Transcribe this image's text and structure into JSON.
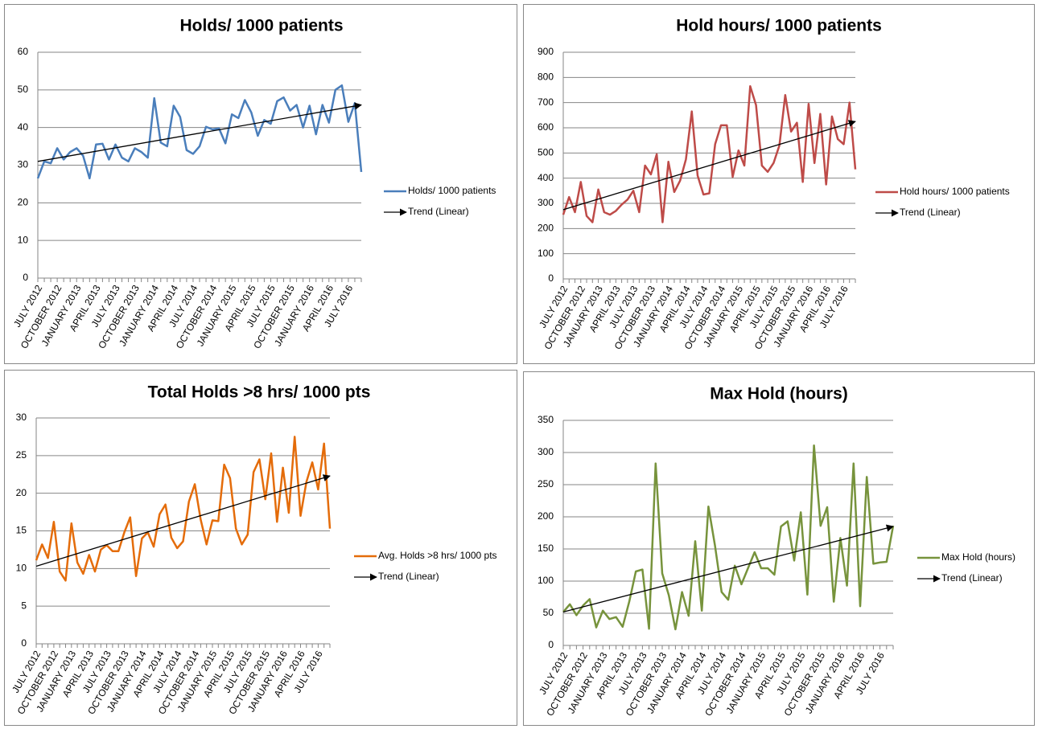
{
  "chart_data": [
    {
      "type": "line",
      "title": "Holds/ 1000 patients",
      "categories": [
        "JULY 2012",
        null,
        null,
        "OCTOBER 2012",
        null,
        null,
        "JANUARY 2013",
        null,
        null,
        "APRIL 2013",
        null,
        null,
        "JULY 2013",
        null,
        null,
        "OCTOBER 2013",
        null,
        null,
        "JANUARY 2014",
        null,
        null,
        "APRIL 2014",
        null,
        null,
        "JULY 2014",
        null,
        null,
        "OCTOBER 2014",
        null,
        null,
        "JANUARY 2015",
        null,
        null,
        "APRIL 2015",
        null,
        null,
        "JULY 2015",
        null,
        null,
        "OCTOBER 2015",
        null,
        null,
        "JANUARY 2016",
        null,
        null,
        "APRIL 2016",
        null,
        null,
        "JULY 2016",
        null,
        null
      ],
      "series": [
        {
          "name": "Holds/ 1000 patients",
          "color": "#4a7ebb",
          "values": [
            26.5,
            31,
            30.5,
            34.5,
            31.5,
            33.5,
            34.5,
            32.5,
            26.5,
            35.5,
            35.7,
            31.5,
            35.5,
            32,
            31,
            34.5,
            33.5,
            32,
            47.8,
            36,
            35,
            45.8,
            42.8,
            34,
            33,
            35,
            40.2,
            39.5,
            39.8,
            35.8,
            43.5,
            42.5,
            47.3,
            44,
            37.8,
            42,
            41,
            47,
            48,
            44.5,
            46,
            40,
            45.8,
            38.2,
            46,
            41.3,
            50,
            51.2,
            41.5,
            46.5,
            28.2
          ]
        }
      ],
      "trend": {
        "name": "Trend (Linear)",
        "start": 31,
        "end": 46
      },
      "ylim": [
        0,
        60
      ],
      "yticks": [
        0,
        10,
        20,
        30,
        40,
        50,
        60
      ],
      "grid": true
    },
    {
      "type": "line",
      "title": "Hold hours/ 1000 patients",
      "categories": [
        "JULY 2012",
        null,
        null,
        "OCTOBER 2012",
        null,
        null,
        "JANUARY 2013",
        null,
        null,
        "APRIL 2013",
        null,
        null,
        "JULY 2013",
        null,
        null,
        "OCTOBER 2013",
        null,
        null,
        "JANUARY 2014",
        null,
        null,
        "APRIL 2014",
        null,
        null,
        "JULY 2014",
        null,
        null,
        "OCTOBER 2014",
        null,
        null,
        "JANUARY 2015",
        null,
        null,
        "APRIL 2015",
        null,
        null,
        "JULY 2015",
        null,
        null,
        "OCTOBER 2015",
        null,
        null,
        "JANUARY 2016",
        null,
        null,
        "APRIL 2016",
        null,
        null,
        "JULY 2016",
        null,
        null
      ],
      "series": [
        {
          "name": "Hold hours/ 1000 patients",
          "color": "#be4b48",
          "values": [
            255,
            325,
            265,
            385,
            250,
            225,
            355,
            265,
            255,
            270,
            295,
            315,
            350,
            265,
            450,
            415,
            495,
            225,
            465,
            345,
            390,
            475,
            665,
            410,
            335,
            340,
            535,
            610,
            610,
            405,
            510,
            450,
            765,
            690,
            450,
            425,
            460,
            530,
            730,
            585,
            620,
            385,
            695,
            460,
            655,
            375,
            645,
            555,
            535,
            700,
            435
          ]
        }
      ],
      "trend": {
        "name": "Trend (Linear)",
        "start": 275,
        "end": 625
      },
      "ylim": [
        0,
        900
      ],
      "yticks": [
        0,
        100,
        200,
        300,
        400,
        500,
        600,
        700,
        800,
        900
      ],
      "grid": true
    },
    {
      "type": "line",
      "title": "Total Holds >8 hrs/ 1000 pts",
      "categories": [
        "JULY 2012",
        null,
        null,
        "OCTOBER 2012",
        null,
        null,
        "JANUARY 2013",
        null,
        null,
        "APRIL 2013",
        null,
        null,
        "JULY 2013",
        null,
        null,
        "OCTOBER 2013",
        null,
        null,
        "JANUARY 2014",
        null,
        null,
        "APRIL 2014",
        null,
        null,
        "JULY 2014",
        null,
        null,
        "OCTOBER 2014",
        null,
        null,
        "JANUARY 2015",
        null,
        null,
        "APRIL 2015",
        null,
        null,
        "JULY 2015",
        null,
        null,
        "OCTOBER 2015",
        null,
        null,
        "JANUARY 2016",
        null,
        null,
        "APRIL 2016",
        null,
        null,
        "JULY 2016",
        null,
        null
      ],
      "series": [
        {
          "name": "Avg. Holds >8 hrs/ 1000 pts",
          "color": "#e46c0a",
          "values": [
            11.1,
            13.2,
            11.4,
            16.2,
            9.6,
            8.4,
            16.0,
            10.8,
            9.3,
            11.8,
            9.6,
            12.5,
            13.1,
            12.3,
            12.3,
            14.8,
            16.8,
            9.0,
            14.0,
            14.8,
            12.9,
            17.2,
            18.5,
            14.1,
            12.7,
            13.6,
            18.9,
            21.2,
            16.5,
            13.2,
            16.4,
            16.3,
            23.8,
            22.0,
            15.3,
            13.2,
            14.5,
            22.8,
            24.5,
            19.2,
            25.3,
            16.2,
            23.4,
            17.4,
            27.5,
            17.0,
            21.5,
            24.1,
            20.5,
            26.6,
            15.3
          ]
        }
      ],
      "trend": {
        "name": "Trend (Linear)",
        "start": 10.3,
        "end": 22.3
      },
      "ylim": [
        0,
        30
      ],
      "yticks": [
        0,
        5,
        10,
        15,
        20,
        25,
        30
      ],
      "grid": true
    },
    {
      "type": "line",
      "title": "Max Hold (hours)",
      "categories": [
        "JULY 2012",
        null,
        null,
        "OCTOBER 2012",
        null,
        null,
        "JANUARY 2013",
        null,
        null,
        "APRIL 2013",
        null,
        null,
        "JULY 2013",
        null,
        null,
        "OCTOBER 2013",
        null,
        null,
        "JANUARY 2014",
        null,
        null,
        "APRIL 2014",
        null,
        null,
        "JULY 2014",
        null,
        null,
        "OCTOBER 2014",
        null,
        null,
        "JANUARY 2015",
        null,
        null,
        "APRIL 2015",
        null,
        null,
        "JULY 2015",
        null,
        null,
        "OCTOBER 2015",
        null,
        null,
        "JANUARY 2016",
        null,
        null,
        "APRIL 2016",
        null,
        null,
        "JULY 2016",
        null,
        null
      ],
      "series": [
        {
          "name": "Max Hold (hours)",
          "color": "#77933c",
          "values": [
            52,
            64,
            47,
            62,
            72,
            28,
            54,
            41,
            44,
            29,
            68,
            115,
            118,
            26,
            283,
            112,
            78,
            25,
            83,
            46,
            162,
            54,
            216,
            155,
            83,
            71,
            124,
            95,
            120,
            145,
            120,
            120,
            110,
            185,
            193,
            132,
            207,
            79,
            311,
            186,
            215,
            68,
            167,
            93,
            283,
            61,
            262,
            127,
            129,
            130,
            186
          ]
        }
      ],
      "trend": {
        "name": "Trend (Linear)",
        "start": 52,
        "end": 185
      },
      "ylim": [
        0,
        350
      ],
      "yticks": [
        0,
        50,
        100,
        150,
        200,
        250,
        300,
        350
      ],
      "grid": true
    }
  ]
}
